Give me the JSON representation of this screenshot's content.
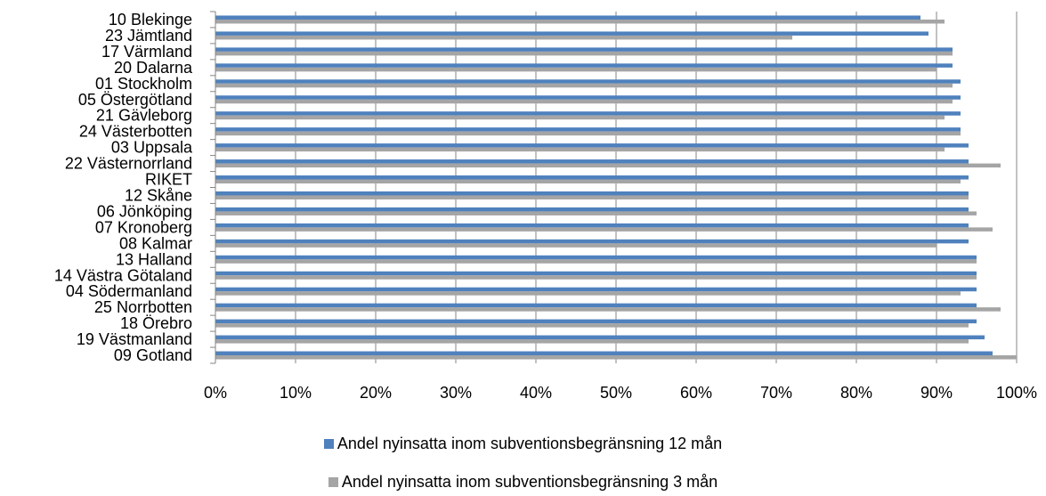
{
  "chart_data": {
    "type": "bar",
    "orientation": "horizontal",
    "categories": [
      "10 Blekinge",
      "23 Jämtland",
      "17 Värmland",
      "20 Dalarna",
      "01 Stockholm",
      "05 Östergötland",
      "21 Gävleborg",
      "24 Västerbotten",
      "03 Uppsala",
      "22 Västernorrland",
      "RIKET",
      "12 Skåne",
      "06 Jönköping",
      "07 Kronoberg",
      "08 Kalmar",
      "13 Halland",
      "14 Västra Götaland",
      "04 Södermanland",
      "25 Norrbotten",
      "18 Örebro",
      "19 Västmanland",
      "09 Gotland"
    ],
    "series": [
      {
        "name": "Andel nyinsatta inom subventionsbegränsning 12 mån",
        "color": "#4f81bd",
        "values": [
          88,
          89,
          92,
          92,
          93,
          93,
          93,
          93,
          94,
          94,
          94,
          94,
          94,
          94,
          94,
          95,
          95,
          95,
          95,
          95,
          96,
          97
        ]
      },
      {
        "name": "Andel nyinsatta inom subventionsbegränsning 3 mån",
        "color": "#a5a5a5",
        "values": [
          91,
          72,
          92,
          90,
          92,
          92,
          91,
          93,
          91,
          98,
          93,
          94,
          95,
          97,
          90,
          95,
          95,
          93,
          98,
          94,
          94,
          100
        ]
      }
    ],
    "xticks": [
      "0%",
      "10%",
      "20%",
      "30%",
      "40%",
      "50%",
      "60%",
      "70%",
      "80%",
      "90%",
      "100%"
    ],
    "xlim": [
      0,
      100
    ],
    "grid": true,
    "legend_position": "bottom"
  }
}
